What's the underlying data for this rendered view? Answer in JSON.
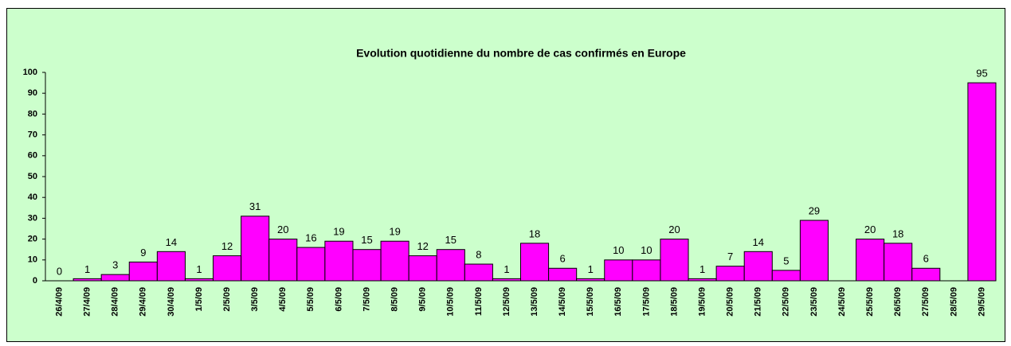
{
  "chart_data": {
    "type": "bar",
    "title": "Evolution quotidienne du nombre de cas confirmés en Europe",
    "categories": [
      "26/4/09",
      "27/4/09",
      "28/4/09",
      "29/4/09",
      "30/4/09",
      "1/5/09",
      "2/5/09",
      "3/5/09",
      "4/5/09",
      "5/5/09",
      "6/5/09",
      "7/5/09",
      "8/5/09",
      "9/5/09",
      "10/5/09",
      "11/5/09",
      "12/5/09",
      "13/5/09",
      "14/5/09",
      "15/5/09",
      "16/5/09",
      "17/5/09",
      "18/5/09",
      "19/5/09",
      "20/5/09",
      "21/5/09",
      "22/5/09",
      "23/5/09",
      "24/5/09",
      "25/5/09",
      "26/5/09",
      "27/5/09",
      "28/5/09",
      "29/5/09"
    ],
    "values": [
      0,
      1,
      3,
      9,
      14,
      1,
      12,
      31,
      20,
      16,
      19,
      15,
      19,
      12,
      15,
      8,
      1,
      18,
      6,
      1,
      10,
      10,
      20,
      1,
      7,
      14,
      5,
      29,
      null,
      20,
      18,
      6,
      null,
      95
    ],
    "color": "#ff00ff",
    "ylim": [
      0,
      100
    ],
    "yticks": [
      0,
      10,
      20,
      30,
      40,
      50,
      60,
      70,
      80,
      90,
      100
    ],
    "grid": false
  }
}
